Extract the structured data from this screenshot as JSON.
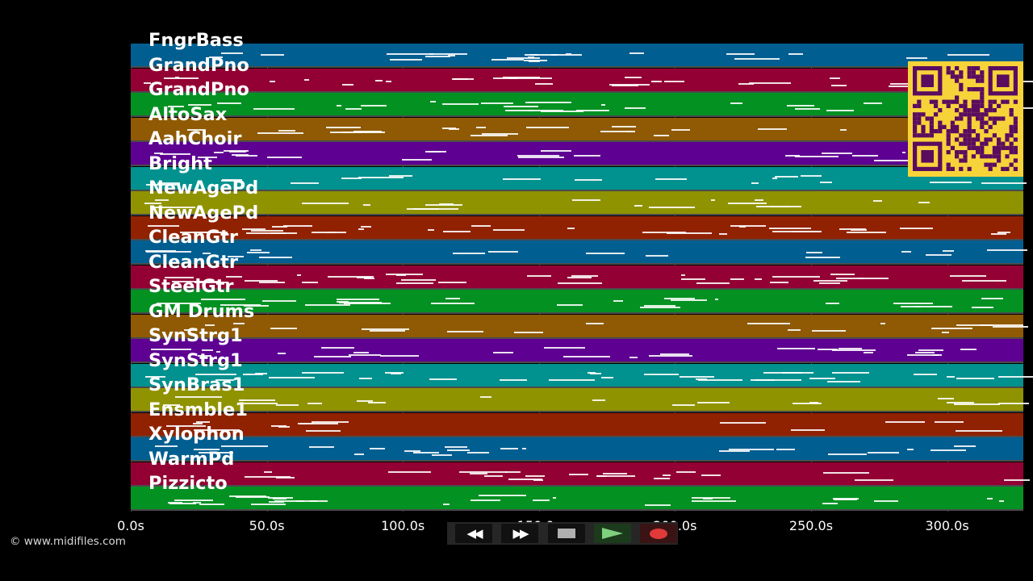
{
  "app": {
    "copyright": "© www.midifiles.com"
  },
  "timeline": {
    "ticks": [
      {
        "label": "0.0s",
        "value": 0
      },
      {
        "label": "50.0s",
        "value": 50
      },
      {
        "label": "100.0s",
        "value": 100
      },
      {
        "label": "150.0s",
        "value": 150
      },
      {
        "label": "200.0s",
        "value": 200
      },
      {
        "label": "250.0s",
        "value": 250
      },
      {
        "label": "300.0s",
        "value": 300
      }
    ],
    "max_seconds": 328
  },
  "colors": {
    "blue": "#015e91",
    "red": "#930033",
    "green": "#039122",
    "orange": "#8f5a03",
    "purple": "#5e0091",
    "teal": "#01918f",
    "olive": "#909300",
    "rust": "#912201",
    "qr_bg": "#f7d33a",
    "qr_fg": "#5a0c5f",
    "record": "#e03a3a",
    "play": "#7fd07f"
  },
  "tracks": [
    {
      "name": "FngrBass",
      "color": "blue"
    },
    {
      "name": "GrandPno",
      "color": "red"
    },
    {
      "name": "GrandPno",
      "color": "green"
    },
    {
      "name": "AltoSax",
      "color": "orange"
    },
    {
      "name": "AahChoir",
      "color": "purple"
    },
    {
      "name": "Bright",
      "color": "teal"
    },
    {
      "name": "NewAgePd",
      "color": "olive"
    },
    {
      "name": "NewAgePd",
      "color": "rust"
    },
    {
      "name": "CleanGtr",
      "color": "blue"
    },
    {
      "name": "CleanGtr",
      "color": "red"
    },
    {
      "name": "SteelGtr",
      "color": "green"
    },
    {
      "name": "GM Drums",
      "color": "orange"
    },
    {
      "name": "SynStrg1",
      "color": "purple"
    },
    {
      "name": "SynStrg1",
      "color": "teal"
    },
    {
      "name": "SynBras1",
      "color": "olive"
    },
    {
      "name": "Ensmble1",
      "color": "rust"
    },
    {
      "name": "Xylophon",
      "color": "blue"
    },
    {
      "name": "WarmPd",
      "color": "red"
    },
    {
      "name": "Pizzicto",
      "color": "green"
    }
  ],
  "transport": {
    "rewind_icon": "rewind-icon",
    "forward_icon": "fast-forward-icon",
    "stop_icon": "stop-icon",
    "play_icon": "play-icon",
    "record_icon": "record-icon",
    "rewind_glyph": "◀◀",
    "forward_glyph": "▶▶"
  }
}
